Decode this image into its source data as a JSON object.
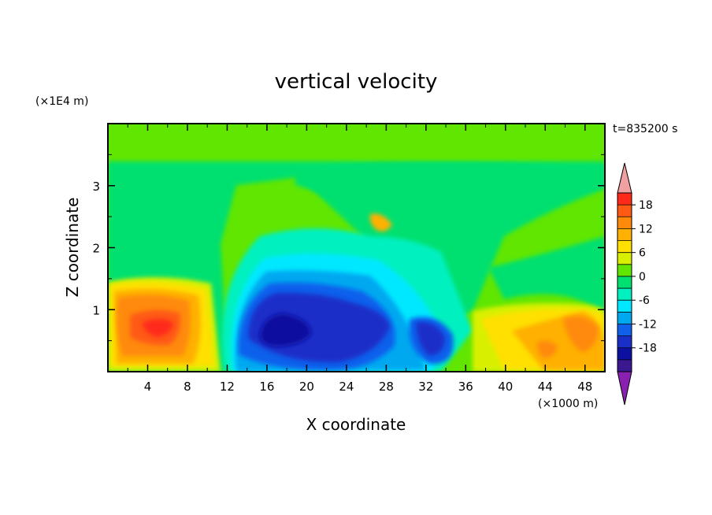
{
  "chart_data": {
    "type": "heatmap",
    "title": "vertical velocity",
    "xlabel": "X coordinate",
    "ylabel": "Z coordinate",
    "x_unit": "(×1000 m)",
    "y_unit": "(×1E4 m)",
    "time_label": "t=835200 s",
    "xlim": [
      0,
      50
    ],
    "ylim": [
      0,
      4
    ],
    "x_ticks": [
      "4",
      "8",
      "12",
      "16",
      "20",
      "24",
      "28",
      "32",
      "36",
      "40",
      "44",
      "48"
    ],
    "y_ticks": [
      "1",
      "2",
      "3"
    ],
    "colorbar": {
      "levels": [
        -21,
        -18,
        -15,
        -12,
        -9,
        -6,
        -3,
        0,
        3,
        6,
        9,
        12,
        15,
        18,
        21
      ],
      "tick_labels": [
        "18",
        "12",
        "6",
        "0",
        "-6",
        "-12",
        "-18"
      ],
      "colors": [
        "#f0a0a0",
        "#ff2a1a",
        "#ff5a14",
        "#ff8a0a",
        "#ffb000",
        "#ffe000",
        "#d8f000",
        "#60e600",
        "#00e070",
        "#00f0c0",
        "#00e8ff",
        "#00a8f0",
        "#1060ec",
        "#1a2ec8",
        "#0c10a0",
        "#3c1890",
        "#8a20b0"
      ],
      "under_color": "#8a20b0",
      "over_color": "#f0a0a0"
    },
    "features": [
      {
        "x": 6,
        "z": 0.8,
        "value": 15
      },
      {
        "x": 18,
        "z": 0.65,
        "value": -15
      },
      {
        "x": 32,
        "z": 0.7,
        "value": -12
      },
      {
        "x": 45,
        "z": 0.5,
        "value": 9
      }
    ]
  }
}
